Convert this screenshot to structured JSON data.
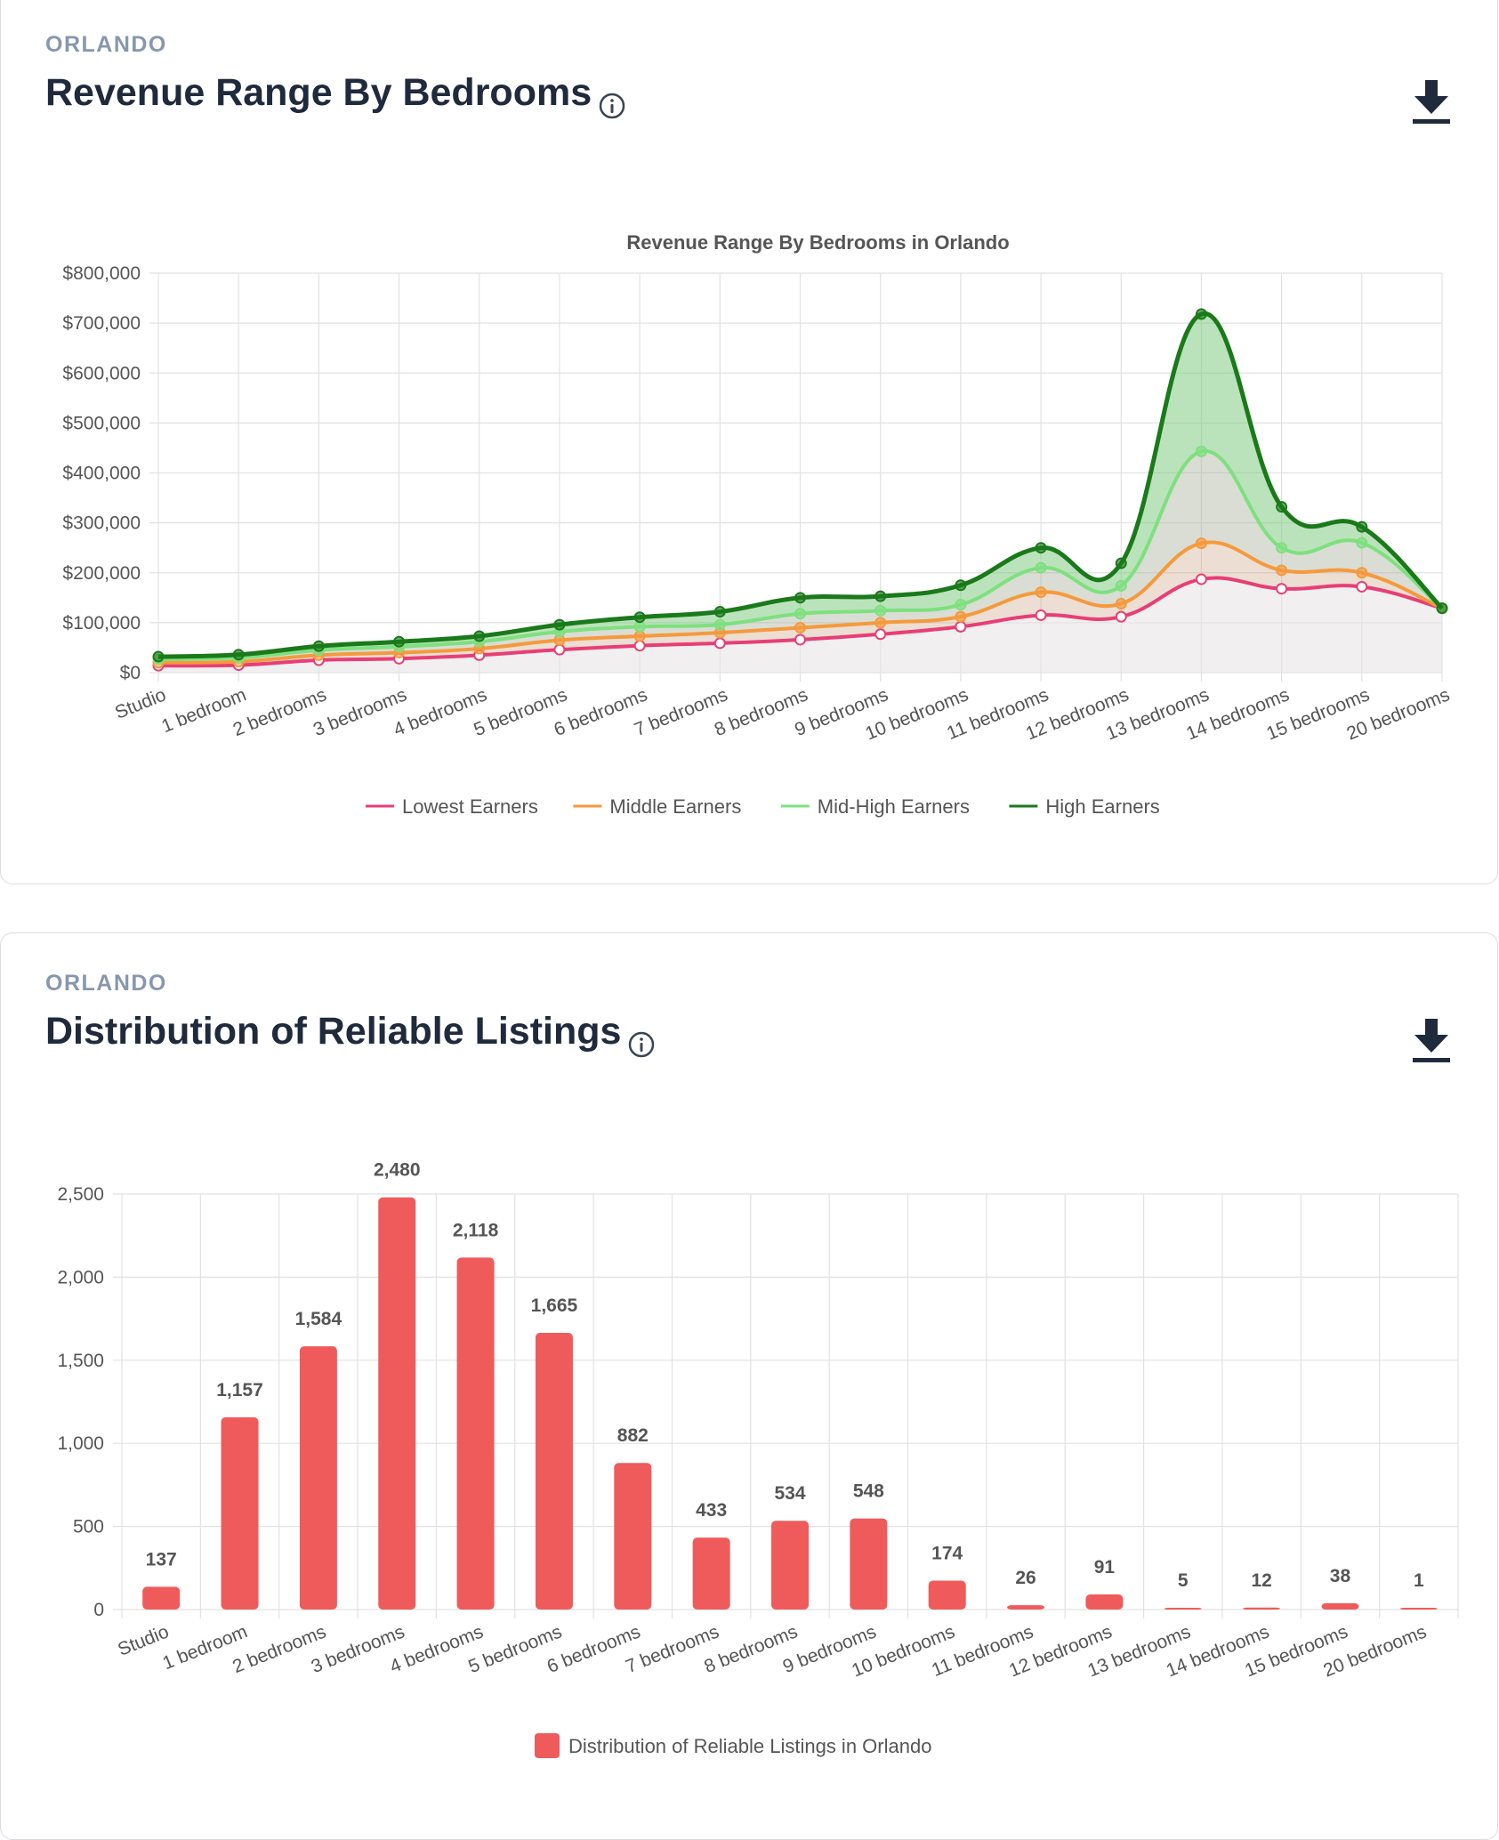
{
  "revenue_card": {
    "city_label": "ORLANDO",
    "title": "Revenue Range By Bedrooms",
    "info_icon": "info-circle-icon",
    "download_icon": "download-icon"
  },
  "listings_card": {
    "city_label": "ORLANDO",
    "title": "Distribution of Reliable Listings",
    "info_icon": "info-circle-icon",
    "download_icon": "download-icon"
  },
  "chart_data": [
    {
      "type": "area",
      "title": "Revenue Range By Bedrooms in Orlando",
      "xlabel": "",
      "ylabel": "",
      "ylim": [
        0,
        800000
      ],
      "yticks": [
        "$0",
        "$100,000",
        "$200,000",
        "$300,000",
        "$400,000",
        "$500,000",
        "$600,000",
        "$700,000",
        "$800,000"
      ],
      "grid": true,
      "legend_position": "bottom",
      "categories": [
        "Studio",
        "1 bedroom",
        "2 bedrooms",
        "3 bedrooms",
        "4 bedrooms",
        "5 bedrooms",
        "6 bedrooms",
        "7 bedrooms",
        "8 bedrooms",
        "9 bedrooms",
        "10 bedrooms",
        "11 bedrooms",
        "12 bedrooms",
        "13 bedrooms",
        "14 bedrooms",
        "15 bedrooms",
        "20 bedrooms"
      ],
      "series": [
        {
          "name": "Lowest Earners",
          "color": "#e83e75",
          "values": [
            14000,
            15000,
            25000,
            28000,
            35000,
            46000,
            54000,
            59000,
            66000,
            77000,
            92000,
            115000,
            112000,
            187000,
            168000,
            172000,
            129000
          ]
        },
        {
          "name": "Middle Earners",
          "color": "#f59a3c",
          "values": [
            20000,
            22000,
            35000,
            40000,
            48000,
            65000,
            73000,
            80000,
            90000,
            100000,
            112000,
            161000,
            138000,
            259000,
            205000,
            200000,
            129000
          ]
        },
        {
          "name": "Mid-High Earners",
          "color": "#7ee07e",
          "values": [
            27000,
            30000,
            45000,
            52000,
            62000,
            82000,
            92000,
            96000,
            118000,
            124000,
            136000,
            210000,
            174000,
            443000,
            250000,
            260000,
            129000
          ]
        },
        {
          "name": "High Earners",
          "color": "#1a7a1a",
          "values": [
            32000,
            36000,
            53000,
            62000,
            73000,
            96000,
            111000,
            122000,
            150000,
            153000,
            175000,
            250000,
            219000,
            718000,
            332000,
            292000,
            129000
          ]
        }
      ]
    },
    {
      "type": "bar",
      "title": "",
      "xlabel": "",
      "ylabel": "",
      "ylim": [
        0,
        2500
      ],
      "yticks": [
        "0",
        "500",
        "1,000",
        "1,500",
        "2,000",
        "2,500"
      ],
      "grid": true,
      "legend_position": "bottom",
      "categories": [
        "Studio",
        "1 bedroom",
        "2 bedrooms",
        "3 bedrooms",
        "4 bedrooms",
        "5 bedrooms",
        "6 bedrooms",
        "7 bedrooms",
        "8 bedrooms",
        "9 bedrooms",
        "10 bedrooms",
        "11 bedrooms",
        "12 bedrooms",
        "13 bedrooms",
        "14 bedrooms",
        "15 bedrooms",
        "20 bedrooms"
      ],
      "series": [
        {
          "name": "Distribution of Reliable Listings in Orlando",
          "color": "#ef5b5b",
          "values": [
            137,
            1157,
            1584,
            2480,
            2118,
            1665,
            882,
            433,
            534,
            548,
            174,
            26,
            91,
            5,
            12,
            38,
            1
          ]
        }
      ],
      "data_labels": [
        "137",
        "1,157",
        "1,584",
        "2,480",
        "2,118",
        "1,665",
        "882",
        "433",
        "534",
        "548",
        "174",
        "26",
        "91",
        "5",
        "12",
        "38",
        "1"
      ]
    }
  ]
}
